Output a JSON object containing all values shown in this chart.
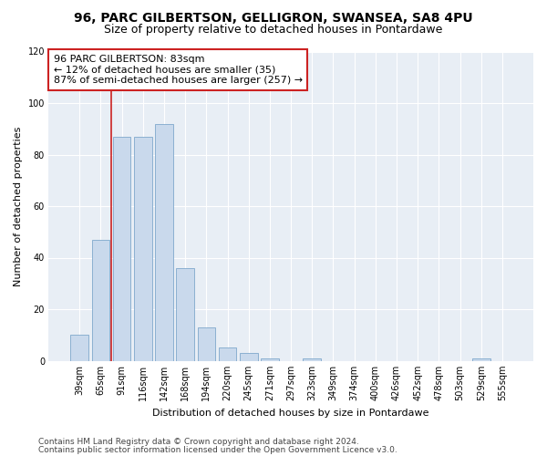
{
  "title1": "96, PARC GILBERTSON, GELLIGRON, SWANSEA, SA8 4PU",
  "title2": "Size of property relative to detached houses in Pontardawe",
  "xlabel": "Distribution of detached houses by size in Pontardawe",
  "ylabel": "Number of detached properties",
  "categories": [
    "39sqm",
    "65sqm",
    "91sqm",
    "116sqm",
    "142sqm",
    "168sqm",
    "194sqm",
    "220sqm",
    "245sqm",
    "271sqm",
    "297sqm",
    "323sqm",
    "349sqm",
    "374sqm",
    "400sqm",
    "426sqm",
    "452sqm",
    "478sqm",
    "503sqm",
    "529sqm",
    "555sqm"
  ],
  "bar_values": [
    10,
    47,
    87,
    87,
    92,
    36,
    13,
    5,
    3,
    1,
    0,
    1,
    0,
    0,
    0,
    0,
    0,
    0,
    0,
    1,
    0
  ],
  "bar_color": "#c9d9ec",
  "bar_edge_color": "#7fa8cc",
  "vline_color": "#cc2222",
  "annotation_text": "96 PARC GILBERTSON: 83sqm\n← 12% of detached houses are smaller (35)\n87% of semi-detached houses are larger (257) →",
  "annotation_box_color": "white",
  "annotation_border_color": "#cc2222",
  "ylim": [
    0,
    120
  ],
  "yticks": [
    0,
    20,
    40,
    60,
    80,
    100,
    120
  ],
  "footer1": "Contains HM Land Registry data © Crown copyright and database right 2024.",
  "footer2": "Contains public sector information licensed under the Open Government Licence v3.0.",
  "background_color": "#e8eef5",
  "grid_color": "#ffffff",
  "title_fontsize": 10,
  "subtitle_fontsize": 9,
  "axis_label_fontsize": 8,
  "tick_fontsize": 7,
  "annotation_fontsize": 8,
  "footer_fontsize": 6.5
}
